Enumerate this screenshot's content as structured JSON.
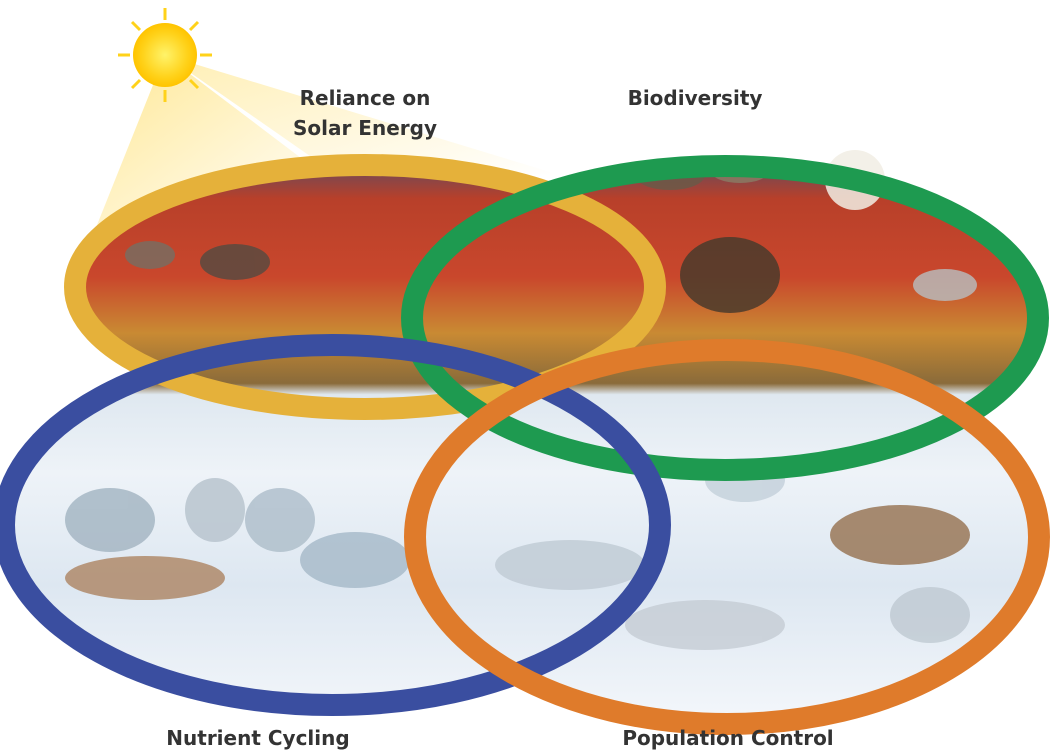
{
  "rings": [
    {
      "label": [
        "Reliance on",
        "Solar Energy"
      ]
    },
    {
      "label": [
        "Biodiversity"
      ]
    },
    {
      "label": [
        "Nutrient Cycling"
      ]
    },
    {
      "label": [
        "Population Control"
      ]
    }
  ]
}
